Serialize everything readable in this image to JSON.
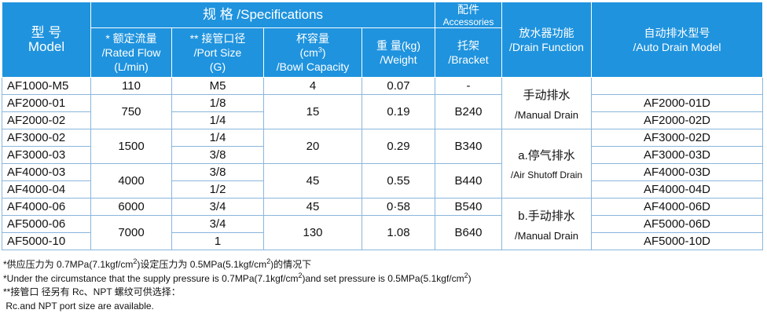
{
  "header": {
    "model_cn": "型 号",
    "model_en": "Model",
    "spec": "规 格 /Specifications",
    "acc_cn": "配件",
    "acc_en": "Accessories",
    "flow": [
      "* 额定流量",
      "/Rated Flow",
      "(L/min)"
    ],
    "port": [
      "** 接管口径",
      "/Port Size",
      "(G)"
    ],
    "bowl": {
      "cn": "杯容量",
      "unit_pre": "(cm",
      "unit_sup": "3",
      "unit_post": ")",
      "en": "/Bowl Capacity"
    },
    "weight": [
      "重  量(kg)",
      "/Weight"
    ],
    "bracket": [
      "托架",
      "/Bracket"
    ],
    "drain": [
      "放水器功能",
      "/Drain Function"
    ],
    "auto": [
      "自动排水型号",
      "/Auto Drain Model"
    ]
  },
  "models": [
    "AF1000-M5",
    "AF2000-01",
    "AF2000-02",
    "AF3000-02",
    "AF3000-03",
    "AF4000-03",
    "AF4000-04",
    "AF4000-06",
    "AF5000-06",
    "AF5000-10"
  ],
  "ports": [
    "M5",
    "1/8",
    "1/4",
    "1/4",
    "3/8",
    "3/8",
    "1/2",
    "3/4",
    "3/4",
    "1"
  ],
  "groups": [
    {
      "flow": "110",
      "bowl": "4",
      "weight": "0.07",
      "bracket": "-"
    },
    {
      "flow": "750",
      "bowl": "15",
      "weight": "0.19",
      "bracket": "B240"
    },
    {
      "flow": "1500",
      "bowl": "20",
      "weight": "0.29",
      "bracket": "B340"
    },
    {
      "flow": "4000",
      "bowl": "45",
      "weight": "0.55",
      "bracket": "B440"
    },
    {
      "flow": "6000",
      "bowl": "45",
      "weight": "0·58",
      "bracket": "B540"
    },
    {
      "flow": "7000",
      "bowl": "130",
      "weight": "1.08",
      "bracket": "B640"
    }
  ],
  "drain": [
    [
      "手动排水",
      "/Manual Drain"
    ],
    [
      "a.停气排水",
      "/Air Shutoff Drain"
    ],
    [
      "b.手动排水",
      "/Manual Drain"
    ]
  ],
  "auto_drain": [
    "AF2000-01D",
    "AF2000-02D",
    "AF3000-02D",
    "AF3000-03D",
    "AF4000-03D",
    "AF4000-04D",
    "AF4000-06D",
    "AF5000-06D",
    "AF5000-10D"
  ],
  "notes": [
    [
      "*供应压力为 0.7MPa(7.1kgf/cm",
      "2",
      ")设定压力为 0.5MPa(5.1kgf/cm",
      "2",
      ")的情况下"
    ],
    [
      "*Under the circumstance that the supply pressure is 0.7MPa(7.1kgf/cm",
      "2",
      ")and set pressure is 0.5MPa(5.1kgf/cm",
      "2",
      ")"
    ],
    [
      "**接管口 径另有 Rc、NPT 螺纹可供选择："
    ],
    [
      " Rc.and NPT port size are available."
    ]
  ]
}
